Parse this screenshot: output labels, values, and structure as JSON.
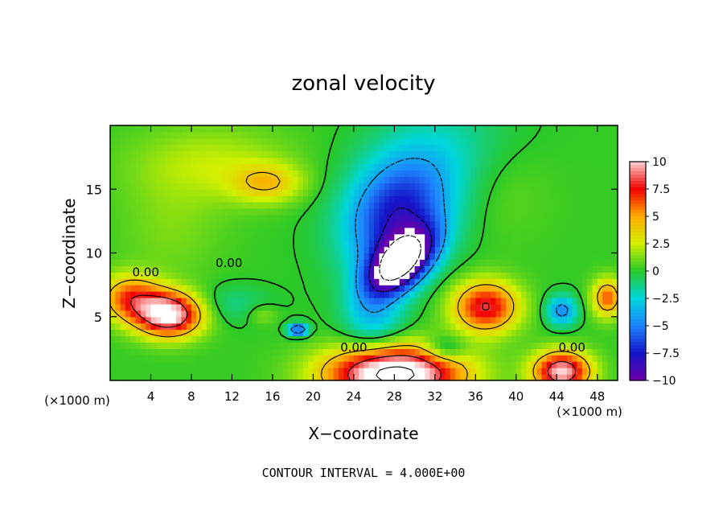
{
  "chart_data": {
    "type": "heatmap",
    "title": "zonal velocity",
    "xlabel": "X−coordinate",
    "ylabel": "Z−coordinate",
    "x_unit": "(×1000 m)",
    "y_unit": "(×1000 m)",
    "xlim": [
      0,
      50
    ],
    "ylim": [
      0,
      20
    ],
    "x_ticks": [
      "4",
      "8",
      "12",
      "16",
      "20",
      "24",
      "28",
      "32",
      "36",
      "40",
      "44",
      "48"
    ],
    "y_ticks": [
      "5",
      "10",
      "15"
    ],
    "colorbar": {
      "range": [
        -10,
        10
      ],
      "tick_values": [
        10,
        7.5,
        5,
        2.5,
        0,
        -2.5,
        -5,
        -7.5,
        -10
      ],
      "tick_labels": [
        "10",
        "7.5",
        "5",
        "2.5",
        "0",
        "−2.5",
        "−5",
        "−7.5",
        "−10"
      ]
    },
    "contour_labels": [
      {
        "text": "0.00",
        "x": 3.5,
        "z": 8.5
      },
      {
        "text": "0.00",
        "x": 11.7,
        "z": 9.2
      },
      {
        "text": "0.00",
        "x": 24.0,
        "z": 2.6
      },
      {
        "text": "0.00",
        "x": 45.5,
        "z": 2.6
      }
    ],
    "features": [
      {
        "name": "negative jet core",
        "x": 28.5,
        "z": 9.0,
        "u": -11
      },
      {
        "name": "surface positive max",
        "x": 28.0,
        "z": 0.7,
        "u": 12
      },
      {
        "name": "left positive max",
        "x": 5.8,
        "z": 5.0,
        "u": 10
      },
      {
        "name": "right positive max",
        "x": 37.2,
        "z": 5.8,
        "u": 7.5
      },
      {
        "name": "bottom-right positive max",
        "x": 44.5,
        "z": 0.7,
        "u": 9
      },
      {
        "name": "upper positive band",
        "x": 15.5,
        "z": 15.5,
        "u": 3
      }
    ],
    "footer": "CONTOUR INTERVAL = 4.000E+00"
  }
}
